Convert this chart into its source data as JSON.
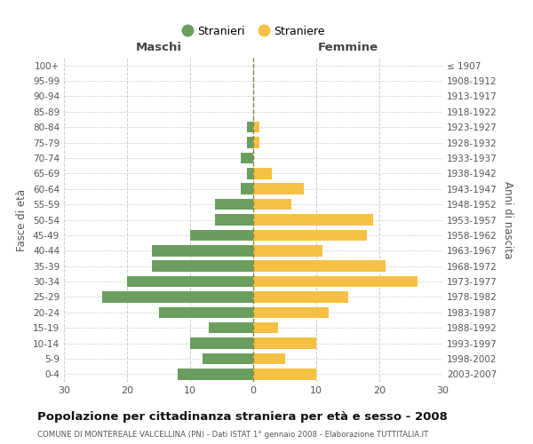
{
  "age_groups": [
    "100+",
    "95-99",
    "90-94",
    "85-89",
    "80-84",
    "75-79",
    "70-74",
    "65-69",
    "60-64",
    "55-59",
    "50-54",
    "45-49",
    "40-44",
    "35-39",
    "30-34",
    "25-29",
    "20-24",
    "15-19",
    "10-14",
    "5-9",
    "0-4"
  ],
  "birth_years": [
    "≤ 1907",
    "1908-1912",
    "1913-1917",
    "1918-1922",
    "1923-1927",
    "1928-1932",
    "1933-1937",
    "1938-1942",
    "1943-1947",
    "1948-1952",
    "1953-1957",
    "1958-1962",
    "1963-1967",
    "1968-1972",
    "1973-1977",
    "1978-1982",
    "1983-1987",
    "1988-1992",
    "1993-1997",
    "1998-2002",
    "2003-2007"
  ],
  "maschi": [
    0,
    0,
    0,
    0,
    1,
    1,
    2,
    1,
    2,
    6,
    6,
    10,
    16,
    16,
    20,
    24,
    15,
    7,
    10,
    8,
    12
  ],
  "femmine": [
    0,
    0,
    0,
    0,
    1,
    1,
    0,
    3,
    8,
    6,
    19,
    18,
    11,
    21,
    26,
    15,
    12,
    4,
    10,
    5,
    10
  ],
  "color_maschi": "#6b9e5e",
  "color_femmine": "#f5c142",
  "title": "Popolazione per cittadinanza straniera per età e sesso - 2008",
  "subtitle": "COMUNE DI MONTEREALE VALCELLINA (PN) - Dati ISTAT 1° gennaio 2008 - Elaborazione TUTTITALIA.IT",
  "xlabel_maschi": "Maschi",
  "xlabel_femmine": "Femmine",
  "ylabel": "Fasce di età",
  "ylabel2": "Anni di nascita",
  "legend_maschi": "Stranieri",
  "legend_femmine": "Straniere",
  "xlim": 30,
  "background_color": "#ffffff",
  "grid_color": "#cccccc"
}
